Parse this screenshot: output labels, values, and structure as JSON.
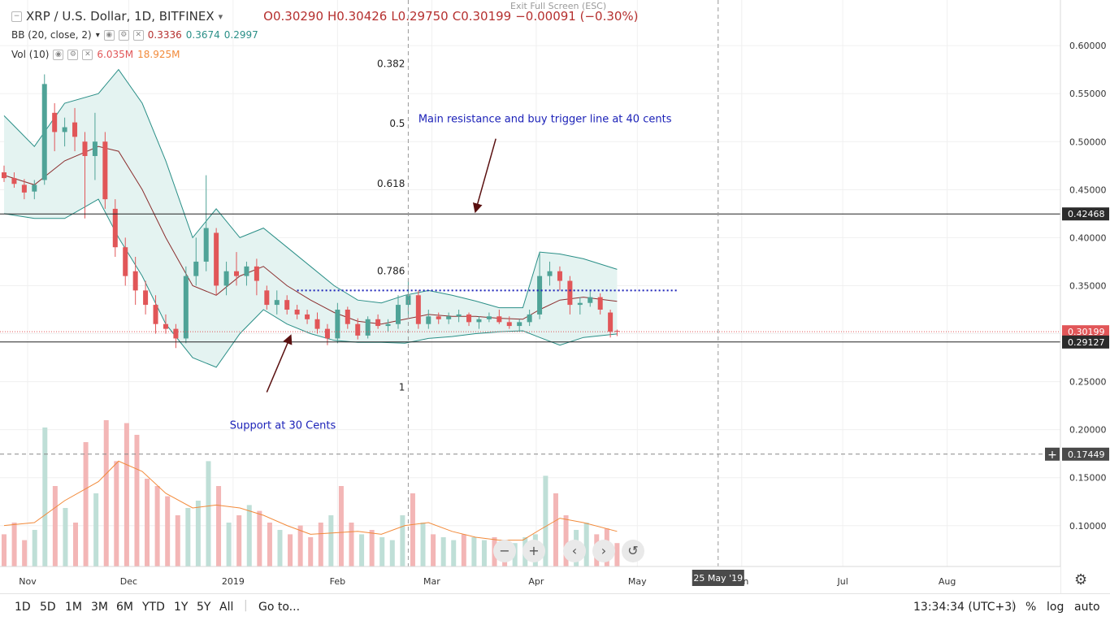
{
  "window": {
    "exit_fullscreen_label": "Exit Full Screen (ESC)"
  },
  "legend": {
    "symbol": "XRP / U.S. Dollar, 1D, BITFINEX",
    "ohlc": {
      "open": "O0.30290",
      "high": "H0.30426",
      "low": "L0.29750",
      "close": "C0.30199",
      "change": "−0.00091 (−0.30%)"
    },
    "bb": {
      "label": "BB (20, close, 2)",
      "basis": "0.3336",
      "upper": "0.3674",
      "lower": "0.2997"
    },
    "vol": {
      "label": "Vol (10)",
      "value": "6.035M",
      "ma": "18.925M"
    }
  },
  "colors": {
    "up": "#4fa397",
    "down": "#e15658",
    "band": "#2a8f87",
    "band_fill": "#e4f3f1",
    "basis": "#8b2e2e",
    "vol_up": "#bfdfd7",
    "vol_down": "#f3b6b6",
    "vol_ma": "#f28a3a",
    "price_line": "#e15658",
    "annotation_text": "#1c22b8",
    "arrow": "#5a1010",
    "hline": "#222222",
    "dotted": "#1c22b8"
  },
  "chart_data": {
    "type": "candlestick",
    "title": "XRP / U.S. Dollar, 1D, BITFINEX",
    "y_axis": {
      "ylim": [
        0.0575,
        0.6475
      ],
      "ticks": [
        0.6,
        0.55,
        0.5,
        0.45,
        0.4,
        0.35,
        0.3,
        0.25,
        0.2,
        0.15,
        0.1
      ],
      "tick_labels": [
        "0.60000",
        "0.55000",
        "0.50000",
        "0.45000",
        "0.40000",
        "0.35000",
        "0.30000",
        "0.25000",
        "0.20000",
        "0.15000",
        "0.10000"
      ],
      "position": "right"
    },
    "x_axis": {
      "start_date": "2018-10-25",
      "end_date": "2019-08-31",
      "ticks": [
        {
          "date": "2018-11-01",
          "label": "Nov"
        },
        {
          "date": "2018-12-01",
          "label": "Dec"
        },
        {
          "date": "2019-01-01",
          "label": "2019"
        },
        {
          "date": "2019-02-01",
          "label": "Feb"
        },
        {
          "date": "2019-03-01",
          "label": "Mar"
        },
        {
          "date": "2019-04-01",
          "label": "Apr"
        },
        {
          "date": "2019-05-01",
          "label": "May"
        },
        {
          "date": "2019-06-01",
          "label": "Jun"
        },
        {
          "date": "2019-07-01",
          "label": "Jul"
        },
        {
          "date": "2019-08-01",
          "label": "Aug"
        }
      ],
      "highlight": {
        "date": "2019-05-25",
        "label": "25 May '19"
      }
    },
    "price_badges": [
      {
        "value": 0.42468,
        "label": "0.42468",
        "style": "dark"
      },
      {
        "value": 0.30199,
        "label": "0.30199",
        "style": "red"
      },
      {
        "value": 0.29127,
        "label": "0.29127",
        "style": "dark"
      },
      {
        "value": 0.17449,
        "label": "0.17449",
        "style": "crosshair"
      }
    ],
    "horizontal_lines": [
      {
        "value": 0.4247,
        "style": "solid"
      },
      {
        "value": 0.2913,
        "style": "solid"
      },
      {
        "value": 0.302,
        "style": "dotted-red"
      },
      {
        "value": 0.17449,
        "style": "dashed-gray"
      }
    ],
    "dotted_resistance": {
      "value": 0.345,
      "from": "2019-01-20",
      "to": "2019-05-13"
    },
    "vertical_lines": [
      {
        "date": "2019-02-22",
        "style": "dashed"
      },
      {
        "date": "2019-05-25",
        "style": "dashed"
      }
    ],
    "fib_labels": [
      {
        "label": "0.382",
        "value": 0.581
      },
      {
        "label": "0.5",
        "value": 0.519
      },
      {
        "label": "0.618",
        "value": 0.456
      },
      {
        "label": "0.786",
        "value": 0.365
      },
      {
        "label": "1",
        "value": 0.244
      }
    ],
    "annotations": [
      {
        "text": "Main resistance and buy trigger line at 40 cents",
        "date": "2019-02-25",
        "value": 0.52,
        "arrow_to": {
          "date": "2019-03-14",
          "value": 0.428
        },
        "arrow_from": {
          "date": "2019-03-20",
          "value": 0.503
        }
      },
      {
        "text": "Support at 30 Cents",
        "date": "2018-12-31",
        "value": 0.201,
        "arrow_from": {
          "date": "2019-01-11",
          "value": 0.239
        },
        "arrow_to": {
          "date": "2019-01-18",
          "value": 0.297
        }
      }
    ],
    "candles": [
      {
        "date": "2018-10-25",
        "o": 0.468,
        "h": 0.475,
        "l": 0.458,
        "c": 0.462
      },
      {
        "date": "2018-10-28",
        "o": 0.462,
        "h": 0.468,
        "l": 0.452,
        "c": 0.456
      },
      {
        "date": "2018-10-31",
        "o": 0.455,
        "h": 0.461,
        "l": 0.44,
        "c": 0.447
      },
      {
        "date": "2018-11-03",
        "o": 0.448,
        "h": 0.46,
        "l": 0.44,
        "c": 0.455
      },
      {
        "date": "2018-11-06",
        "o": 0.46,
        "h": 0.57,
        "l": 0.455,
        "c": 0.56
      },
      {
        "date": "2018-11-09",
        "o": 0.53,
        "h": 0.54,
        "l": 0.49,
        "c": 0.51
      },
      {
        "date": "2018-11-12",
        "o": 0.51,
        "h": 0.525,
        "l": 0.495,
        "c": 0.515
      },
      {
        "date": "2018-11-15",
        "o": 0.52,
        "h": 0.535,
        "l": 0.49,
        "c": 0.505
      },
      {
        "date": "2018-11-18",
        "o": 0.5,
        "h": 0.51,
        "l": 0.42,
        "c": 0.485
      },
      {
        "date": "2018-11-21",
        "o": 0.485,
        "h": 0.53,
        "l": 0.46,
        "c": 0.5
      },
      {
        "date": "2018-11-24",
        "o": 0.5,
        "h": 0.51,
        "l": 0.43,
        "c": 0.44
      },
      {
        "date": "2018-11-27",
        "o": 0.43,
        "h": 0.44,
        "l": 0.38,
        "c": 0.39
      },
      {
        "date": "2018-11-30",
        "o": 0.39,
        "h": 0.4,
        "l": 0.35,
        "c": 0.36
      },
      {
        "date": "2018-12-03",
        "o": 0.365,
        "h": 0.38,
        "l": 0.33,
        "c": 0.345
      },
      {
        "date": "2018-12-06",
        "o": 0.345,
        "h": 0.355,
        "l": 0.32,
        "c": 0.33
      },
      {
        "date": "2018-12-09",
        "o": 0.33,
        "h": 0.34,
        "l": 0.3,
        "c": 0.31
      },
      {
        "date": "2018-12-12",
        "o": 0.31,
        "h": 0.32,
        "l": 0.3,
        "c": 0.305
      },
      {
        "date": "2018-12-15",
        "o": 0.305,
        "h": 0.31,
        "l": 0.285,
        "c": 0.295
      },
      {
        "date": "2018-12-18",
        "o": 0.295,
        "h": 0.37,
        "l": 0.29,
        "c": 0.36
      },
      {
        "date": "2018-12-21",
        "o": 0.36,
        "h": 0.4,
        "l": 0.35,
        "c": 0.375
      },
      {
        "date": "2018-12-24",
        "o": 0.375,
        "h": 0.465,
        "l": 0.365,
        "c": 0.41
      },
      {
        "date": "2018-12-27",
        "o": 0.405,
        "h": 0.41,
        "l": 0.34,
        "c": 0.35
      },
      {
        "date": "2018-12-30",
        "o": 0.35,
        "h": 0.375,
        "l": 0.34,
        "c": 0.365
      },
      {
        "date": "2019-01-02",
        "o": 0.365,
        "h": 0.385,
        "l": 0.35,
        "c": 0.36
      },
      {
        "date": "2019-01-05",
        "o": 0.36,
        "h": 0.375,
        "l": 0.35,
        "c": 0.37
      },
      {
        "date": "2019-01-08",
        "o": 0.37,
        "h": 0.378,
        "l": 0.34,
        "c": 0.355
      },
      {
        "date": "2019-01-11",
        "o": 0.345,
        "h": 0.35,
        "l": 0.325,
        "c": 0.33
      },
      {
        "date": "2019-01-14",
        "o": 0.33,
        "h": 0.345,
        "l": 0.32,
        "c": 0.335
      },
      {
        "date": "2019-01-17",
        "o": 0.335,
        "h": 0.34,
        "l": 0.32,
        "c": 0.325
      },
      {
        "date": "2019-01-20",
        "o": 0.325,
        "h": 0.33,
        "l": 0.315,
        "c": 0.32
      },
      {
        "date": "2019-01-23",
        "o": 0.32,
        "h": 0.325,
        "l": 0.31,
        "c": 0.315
      },
      {
        "date": "2019-01-26",
        "o": 0.315,
        "h": 0.322,
        "l": 0.3,
        "c": 0.305
      },
      {
        "date": "2019-01-29",
        "o": 0.305,
        "h": 0.31,
        "l": 0.288,
        "c": 0.295
      },
      {
        "date": "2019-02-01",
        "o": 0.295,
        "h": 0.332,
        "l": 0.29,
        "c": 0.325
      },
      {
        "date": "2019-02-04",
        "o": 0.325,
        "h": 0.328,
        "l": 0.305,
        "c": 0.31
      },
      {
        "date": "2019-02-07",
        "o": 0.31,
        "h": 0.316,
        "l": 0.294,
        "c": 0.298
      },
      {
        "date": "2019-02-10",
        "o": 0.298,
        "h": 0.318,
        "l": 0.295,
        "c": 0.315
      },
      {
        "date": "2019-02-13",
        "o": 0.315,
        "h": 0.32,
        "l": 0.305,
        "c": 0.308
      },
      {
        "date": "2019-02-16",
        "o": 0.308,
        "h": 0.315,
        "l": 0.302,
        "c": 0.31
      },
      {
        "date": "2019-02-19",
        "o": 0.31,
        "h": 0.34,
        "l": 0.305,
        "c": 0.33
      },
      {
        "date": "2019-02-22",
        "o": 0.33,
        "h": 0.355,
        "l": 0.32,
        "c": 0.34
      },
      {
        "date": "2019-02-25",
        "o": 0.34,
        "h": 0.345,
        "l": 0.305,
        "c": 0.31
      },
      {
        "date": "2019-02-28",
        "o": 0.31,
        "h": 0.325,
        "l": 0.305,
        "c": 0.318
      },
      {
        "date": "2019-03-03",
        "o": 0.318,
        "h": 0.322,
        "l": 0.31,
        "c": 0.315
      },
      {
        "date": "2019-03-06",
        "o": 0.315,
        "h": 0.322,
        "l": 0.31,
        "c": 0.318
      },
      {
        "date": "2019-03-09",
        "o": 0.318,
        "h": 0.325,
        "l": 0.312,
        "c": 0.32
      },
      {
        "date": "2019-03-12",
        "o": 0.32,
        "h": 0.322,
        "l": 0.308,
        "c": 0.312
      },
      {
        "date": "2019-03-15",
        "o": 0.312,
        "h": 0.318,
        "l": 0.305,
        "c": 0.315
      },
      {
        "date": "2019-03-18",
        "o": 0.315,
        "h": 0.322,
        "l": 0.312,
        "c": 0.318
      },
      {
        "date": "2019-03-21",
        "o": 0.318,
        "h": 0.325,
        "l": 0.31,
        "c": 0.312
      },
      {
        "date": "2019-03-24",
        "o": 0.312,
        "h": 0.318,
        "l": 0.305,
        "c": 0.308
      },
      {
        "date": "2019-03-27",
        "o": 0.308,
        "h": 0.315,
        "l": 0.302,
        "c": 0.312
      },
      {
        "date": "2019-03-30",
        "o": 0.312,
        "h": 0.325,
        "l": 0.308,
        "c": 0.32
      },
      {
        "date": "2019-04-02",
        "o": 0.32,
        "h": 0.385,
        "l": 0.315,
        "c": 0.36
      },
      {
        "date": "2019-04-05",
        "o": 0.36,
        "h": 0.375,
        "l": 0.35,
        "c": 0.365
      },
      {
        "date": "2019-04-08",
        "o": 0.365,
        "h": 0.37,
        "l": 0.345,
        "c": 0.355
      },
      {
        "date": "2019-04-11",
        "o": 0.355,
        "h": 0.36,
        "l": 0.32,
        "c": 0.33
      },
      {
        "date": "2019-04-14",
        "o": 0.33,
        "h": 0.338,
        "l": 0.32,
        "c": 0.332
      },
      {
        "date": "2019-04-17",
        "o": 0.332,
        "h": 0.345,
        "l": 0.328,
        "c": 0.338
      },
      {
        "date": "2019-04-20",
        "o": 0.338,
        "h": 0.342,
        "l": 0.32,
        "c": 0.325
      },
      {
        "date": "2019-04-23",
        "o": 0.322,
        "h": 0.325,
        "l": 0.296,
        "c": 0.302
      },
      {
        "date": "2019-04-25",
        "o": 0.3029,
        "h": 0.30426,
        "l": 0.2975,
        "c": 0.30199
      }
    ],
    "bollinger": {
      "upper": [
        [
          "2018-10-25",
          0.527
        ],
        [
          "2018-11-03",
          0.495
        ],
        [
          "2018-11-12",
          0.54
        ],
        [
          "2018-11-22",
          0.55
        ],
        [
          "2018-11-28",
          0.575
        ],
        [
          "2018-12-05",
          0.54
        ],
        [
          "2018-12-12",
          0.48
        ],
        [
          "2018-12-20",
          0.4
        ],
        [
          "2018-12-27",
          0.43
        ],
        [
          "2019-01-03",
          0.4
        ],
        [
          "2019-01-10",
          0.41
        ],
        [
          "2019-01-17",
          0.39
        ],
        [
          "2019-01-24",
          0.37
        ],
        [
          "2019-01-31",
          0.35
        ],
        [
          "2019-02-07",
          0.335
        ],
        [
          "2019-02-14",
          0.332
        ],
        [
          "2019-02-21",
          0.34
        ],
        [
          "2019-02-28",
          0.345
        ],
        [
          "2019-03-07",
          0.34
        ],
        [
          "2019-03-14",
          0.334
        ],
        [
          "2019-03-21",
          0.327
        ],
        [
          "2019-03-28",
          0.327
        ],
        [
          "2019-04-02",
          0.385
        ],
        [
          "2019-04-08",
          0.383
        ],
        [
          "2019-04-15",
          0.378
        ],
        [
          "2019-04-25",
          0.367
        ]
      ],
      "basis": [
        [
          "2018-10-25",
          0.465
        ],
        [
          "2018-11-03",
          0.455
        ],
        [
          "2018-11-12",
          0.48
        ],
        [
          "2018-11-22",
          0.495
        ],
        [
          "2018-11-28",
          0.49
        ],
        [
          "2018-12-05",
          0.45
        ],
        [
          "2018-12-12",
          0.4
        ],
        [
          "2018-12-20",
          0.35
        ],
        [
          "2018-12-27",
          0.34
        ],
        [
          "2019-01-03",
          0.36
        ],
        [
          "2019-01-10",
          0.37
        ],
        [
          "2019-01-17",
          0.35
        ],
        [
          "2019-01-24",
          0.335
        ],
        [
          "2019-01-31",
          0.322
        ],
        [
          "2019-02-07",
          0.313
        ],
        [
          "2019-02-14",
          0.31
        ],
        [
          "2019-02-21",
          0.315
        ],
        [
          "2019-02-28",
          0.32
        ],
        [
          "2019-03-07",
          0.318
        ],
        [
          "2019-03-14",
          0.318
        ],
        [
          "2019-03-21",
          0.316
        ],
        [
          "2019-03-28",
          0.315
        ],
        [
          "2019-04-02",
          0.325
        ],
        [
          "2019-04-08",
          0.335
        ],
        [
          "2019-04-15",
          0.338
        ],
        [
          "2019-04-25",
          0.3336
        ]
      ],
      "lower": [
        [
          "2018-10-25",
          0.425
        ],
        [
          "2018-11-03",
          0.42
        ],
        [
          "2018-11-12",
          0.42
        ],
        [
          "2018-11-22",
          0.44
        ],
        [
          "2018-11-28",
          0.4
        ],
        [
          "2018-12-05",
          0.36
        ],
        [
          "2018-12-12",
          0.31
        ],
        [
          "2018-12-20",
          0.275
        ],
        [
          "2018-12-27",
          0.265
        ],
        [
          "2019-01-03",
          0.3
        ],
        [
          "2019-01-10",
          0.325
        ],
        [
          "2019-01-17",
          0.31
        ],
        [
          "2019-01-24",
          0.3
        ],
        [
          "2019-01-31",
          0.293
        ],
        [
          "2019-02-07",
          0.291
        ],
        [
          "2019-02-14",
          0.291
        ],
        [
          "2019-02-21",
          0.29
        ],
        [
          "2019-02-28",
          0.295
        ],
        [
          "2019-03-07",
          0.297
        ],
        [
          "2019-03-14",
          0.3
        ],
        [
          "2019-03-21",
          0.302
        ],
        [
          "2019-03-28",
          0.303
        ],
        [
          "2019-04-02",
          0.296
        ],
        [
          "2019-04-08",
          0.288
        ],
        [
          "2019-04-15",
          0.296
        ],
        [
          "2019-04-25",
          0.2997
        ]
      ]
    },
    "volume": {
      "unit_note": "relative height, 0..1 of volume pane",
      "values": [
        0.22,
        0.3,
        0.18,
        0.25,
        0.95,
        0.55,
        0.4,
        0.3,
        0.85,
        0.5,
        1.0,
        0.72,
        0.98,
        0.9,
        0.6,
        0.55,
        0.48,
        0.35,
        0.4,
        0.45,
        0.72,
        0.55,
        0.3,
        0.35,
        0.42,
        0.38,
        0.3,
        0.25,
        0.22,
        0.28,
        0.2,
        0.3,
        0.35,
        0.55,
        0.3,
        0.22,
        0.25,
        0.2,
        0.18,
        0.35,
        0.5,
        0.3,
        0.22,
        0.2,
        0.18,
        0.22,
        0.2,
        0.18,
        0.2,
        0.18,
        0.16,
        0.2,
        0.22,
        0.62,
        0.5,
        0.35,
        0.25,
        0.3,
        0.22,
        0.26,
        0.16
      ],
      "ma": [
        [
          "2018-10-25",
          0.28
        ],
        [
          "2018-11-03",
          0.3
        ],
        [
          "2018-11-12",
          0.45
        ],
        [
          "2018-11-22",
          0.58
        ],
        [
          "2018-11-28",
          0.72
        ],
        [
          "2018-12-05",
          0.65
        ],
        [
          "2018-12-12",
          0.5
        ],
        [
          "2018-12-20",
          0.4
        ],
        [
          "2018-12-27",
          0.42
        ],
        [
          "2019-01-03",
          0.4
        ],
        [
          "2019-01-10",
          0.35
        ],
        [
          "2019-01-17",
          0.28
        ],
        [
          "2019-01-24",
          0.22
        ],
        [
          "2019-01-31",
          0.23
        ],
        [
          "2019-02-07",
          0.24
        ],
        [
          "2019-02-14",
          0.22
        ],
        [
          "2019-02-21",
          0.28
        ],
        [
          "2019-02-28",
          0.3
        ],
        [
          "2019-03-07",
          0.24
        ],
        [
          "2019-03-14",
          0.2
        ],
        [
          "2019-03-21",
          0.18
        ],
        [
          "2019-03-28",
          0.18
        ],
        [
          "2019-04-02",
          0.25
        ],
        [
          "2019-04-08",
          0.33
        ],
        [
          "2019-04-15",
          0.3
        ],
        [
          "2019-04-25",
          0.24
        ]
      ]
    }
  },
  "toolbar": {
    "ranges": [
      "1D",
      "5D",
      "1M",
      "3M",
      "6M",
      "YTD",
      "1Y",
      "5Y",
      "All"
    ],
    "goto": "Go to...",
    "clock": "13:34:34 (UTC+3)",
    "percent": "%",
    "log": "log",
    "auto": "auto"
  },
  "tools": [
    "−",
    "+",
    "‹",
    "›",
    "↺"
  ]
}
